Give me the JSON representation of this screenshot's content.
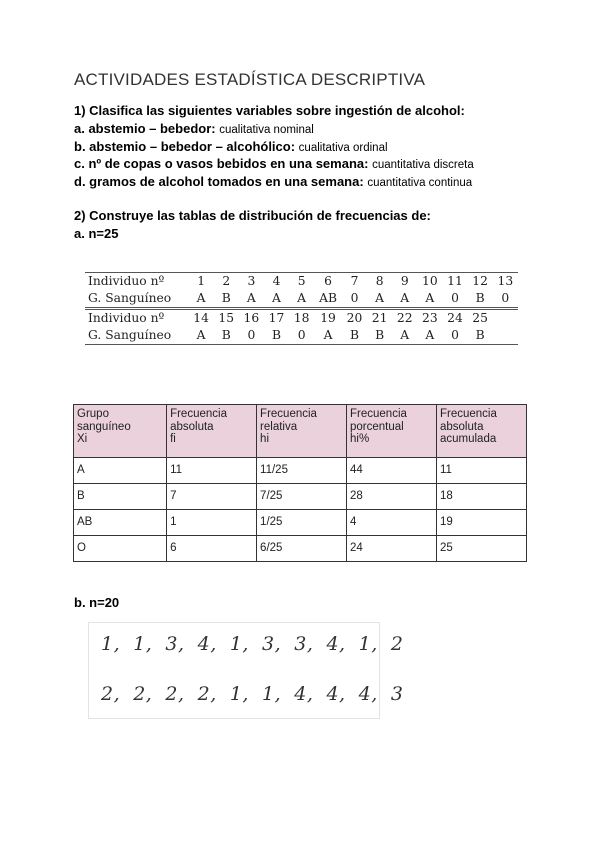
{
  "title": "ACTIVIDADES ESTADÍSTICA DESCRIPTIVA",
  "s1": {
    "heading": "1) Clasifica las siguientes variables sobre ingestión de alcohol:",
    "items": [
      {
        "q": "a. abstemio – bebedor:",
        "a": "cualitativa nominal"
      },
      {
        "q": "b. abstemio – bebedor – alcohólico:",
        "a": "cualitativa ordinal"
      },
      {
        "q": "c. nº de copas o vasos bebidos en una semana:",
        "a": "cuantitativa discreta"
      },
      {
        "q": "d. gramos de alcohol tomados en una semana:",
        "a": "cuantitativa continua"
      }
    ]
  },
  "s2": {
    "heading": "2) Construye las tablas de distribución de frecuencias de:",
    "a_label": "a. n=25",
    "b_label": "b. n=20"
  },
  "raw_a": {
    "label_ind": "Individuo nº",
    "label_g": "G. Sanguíneo",
    "row1_ind": [
      "1",
      "2",
      "3",
      "4",
      "5",
      "6",
      "7",
      "8",
      "9",
      "10",
      "11",
      "12",
      "13"
    ],
    "row1_g": [
      "A",
      "B",
      "A",
      "A",
      "A",
      "AB",
      "0",
      "A",
      "A",
      "A",
      "0",
      "B",
      "0"
    ],
    "row2_ind": [
      "14",
      "15",
      "16",
      "17",
      "18",
      "19",
      "20",
      "21",
      "22",
      "23",
      "24",
      "25"
    ],
    "row2_g": [
      "A",
      "B",
      "0",
      "B",
      "0",
      "A",
      "B",
      "B",
      "A",
      "A",
      "0",
      "B"
    ]
  },
  "freq_table": {
    "header_color": "#ead1dc",
    "headers": [
      [
        "Grupo",
        "sanguíneo",
        "Xi"
      ],
      [
        "Frecuencia",
        "absoluta",
        "fi"
      ],
      [
        "Frecuencia",
        "relativa",
        "hi"
      ],
      [
        "Frecuencia",
        "porcentual",
        "hi%"
      ],
      [
        "Frecuencia",
        "absoluta",
        "acumulada"
      ]
    ],
    "rows": [
      [
        "A",
        "11",
        "11/25",
        "44",
        "11"
      ],
      [
        "B",
        "7",
        "7/25",
        "28",
        "18"
      ],
      [
        "AB",
        "1",
        "1/25",
        "4",
        "19"
      ],
      [
        "O",
        "6",
        "6/25",
        "24",
        "25"
      ]
    ]
  },
  "raw_b": {
    "row1": "1,  1,  3,  4,  1,  3,  3,  4,  1,  2",
    "row2": "2,  2,  2,  2,  1,  1,  4,  4,  4,  3"
  }
}
